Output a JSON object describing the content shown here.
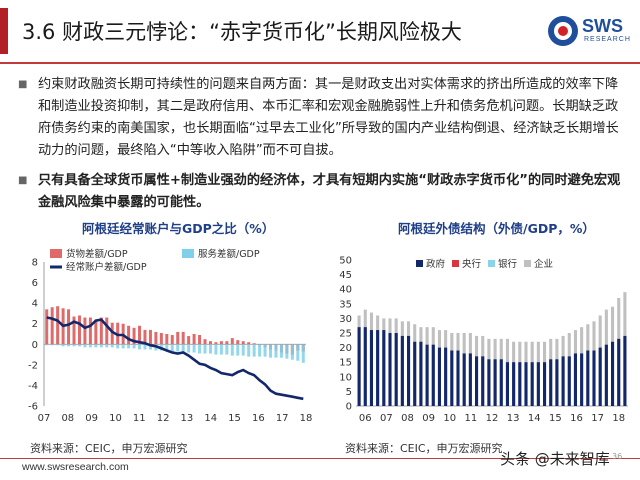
{
  "header": {
    "title": "3.6 财政三元悖论：“赤字货币化”长期风险极大",
    "logo_text": "SWS",
    "logo_sub": "RESEARCH"
  },
  "content": {
    "para1": "约束财政融资长期可持续性的问题来自两方面：其一是财政支出对实体需求的挤出所造成的效率下降和制造业投资抑制，其二是政府信用、本币汇率和宏观金融脆弱性上升和债务危机问题。长期缺乏政府债务约束的南美国家，也长期面临“过早去工业化”所导致的国内产业结构倒退、经济缺乏长期增长动力的问题，最终陷入“中等收入陷阱”而不可自拔。",
    "para2": "只有具备全球货币属性+制造业强劲的经济体，才具有短期内实施“财政赤字货币化”的同时避免宏观金融风险集中暴露的可能性。"
  },
  "footer": {
    "url": "www.swsresearch.com",
    "watermark": "头条 @未来智库",
    "page": "36"
  },
  "colors": {
    "brand_red": "#b21f24",
    "brand_blue": "#1f4e9b",
    "goods": "#e06a6a",
    "services": "#7fd0e8",
    "current": "#13276b",
    "gov": "#13276b",
    "central": "#d9363e",
    "bank": "#8ad3ea",
    "corp": "#c0c0c0"
  },
  "chart_data": [
    {
      "type": "bar",
      "title": "阿根廷经常账户与GDP之比（%）",
      "source": "资料来源：CEIC，申万宏源研究",
      "legend": [
        "货物差额/GDP",
        "服务差额/GDP",
        "经常账户差额/GDP"
      ],
      "xticks": [
        "07",
        "08",
        "09",
        "10",
        "11",
        "12",
        "13",
        "14",
        "15",
        "16",
        "17",
        "18"
      ],
      "yticks": [
        8,
        6,
        4,
        2,
        0,
        -2,
        -4,
        -6
      ],
      "ylim": [
        -6,
        8
      ],
      "goods": [
        3.4,
        3.6,
        3.7,
        3.5,
        3.4,
        2.7,
        2.8,
        2.6,
        2.6,
        2.4,
        2.6,
        2.6,
        2.1,
        2.1,
        2.0,
        1.8,
        1.6,
        1.8,
        1.4,
        1.4,
        1.2,
        1.1,
        1.0,
        0.9,
        1.2,
        1.2,
        0.8,
        1.0,
        0.9,
        0.5,
        0.3,
        0.2,
        0.3,
        0.3,
        0.6,
        0.4,
        0.3,
        0.2,
        0.1,
        -0.1,
        -0.3,
        -0.5,
        -0.6,
        -0.8,
        -0.9,
        -1.0,
        -0.6,
        -0.7
      ],
      "services": [
        -0.1,
        -0.1,
        -0.1,
        -0.2,
        -0.2,
        -0.2,
        -0.2,
        -0.3,
        -0.3,
        -0.3,
        -0.3,
        -0.3,
        -0.3,
        -0.4,
        -0.4,
        -0.4,
        -0.4,
        -0.5,
        -0.5,
        -0.5,
        -0.6,
        -0.6,
        -0.6,
        -0.7,
        -0.7,
        -0.7,
        -0.8,
        -0.8,
        -0.9,
        -0.9,
        -0.9,
        -1.0,
        -1.0,
        -1.0,
        -1.1,
        -1.1,
        -1.1,
        -1.2,
        -1.2,
        -1.2,
        -1.2,
        -1.3,
        -1.3,
        -1.3,
        -1.4,
        -1.5,
        -1.6,
        -1.8
      ],
      "current_account": [
        2.6,
        2.5,
        2.3,
        1.8,
        1.9,
        2.2,
        2.0,
        1.6,
        1.8,
        2.3,
        2.4,
        1.8,
        1.2,
        0.9,
        0.9,
        0.5,
        0.3,
        0.2,
        0.1,
        -0.1,
        -0.2,
        -0.4,
        -0.6,
        -0.8,
        -0.9,
        -0.8,
        -1.1,
        -1.5,
        -1.9,
        -2.0,
        -2.3,
        -2.5,
        -2.8,
        -2.9,
        -3.0,
        -2.7,
        -2.5,
        -2.8,
        -3.0,
        -3.5,
        -3.9,
        -4.5,
        -4.8,
        -4.9,
        -5.0,
        -5.1,
        -5.2,
        -5.3
      ]
    },
    {
      "type": "bar",
      "title": "阿根廷外债结构（外债/GDP，%）",
      "source": "资料来源：CEIC，申万宏源研究",
      "legend": [
        "政府",
        "央行",
        "银行",
        "企业"
      ],
      "xticks": [
        "06",
        "07",
        "08",
        "09",
        "10",
        "11",
        "12",
        "13",
        "14",
        "15",
        "16",
        "17",
        "18"
      ],
      "yticks": [
        50,
        45,
        40,
        35,
        30,
        25,
        20,
        15,
        10,
        5,
        0
      ],
      "ylim": [
        0,
        50
      ],
      "government": [
        27,
        27,
        26,
        26,
        26,
        25,
        25,
        24,
        24,
        22,
        22,
        21,
        21,
        20,
        20,
        19,
        19,
        18,
        18,
        17,
        17,
        16,
        16,
        16,
        15,
        15,
        15,
        15,
        15,
        15,
        15,
        16,
        16,
        17,
        17,
        18,
        18,
        19,
        19,
        20,
        21,
        22,
        23,
        24
      ],
      "total": [
        31,
        33,
        32,
        31,
        30,
        30,
        30,
        29,
        29,
        28,
        27,
        27,
        27,
        26,
        26,
        25,
        25,
        25,
        25,
        24,
        24,
        23,
        23,
        23,
        23,
        22,
        22,
        22,
        22,
        22,
        22,
        23,
        23,
        24,
        25,
        26,
        27,
        28,
        29,
        31,
        33,
        34,
        37,
        39
      ]
    }
  ]
}
